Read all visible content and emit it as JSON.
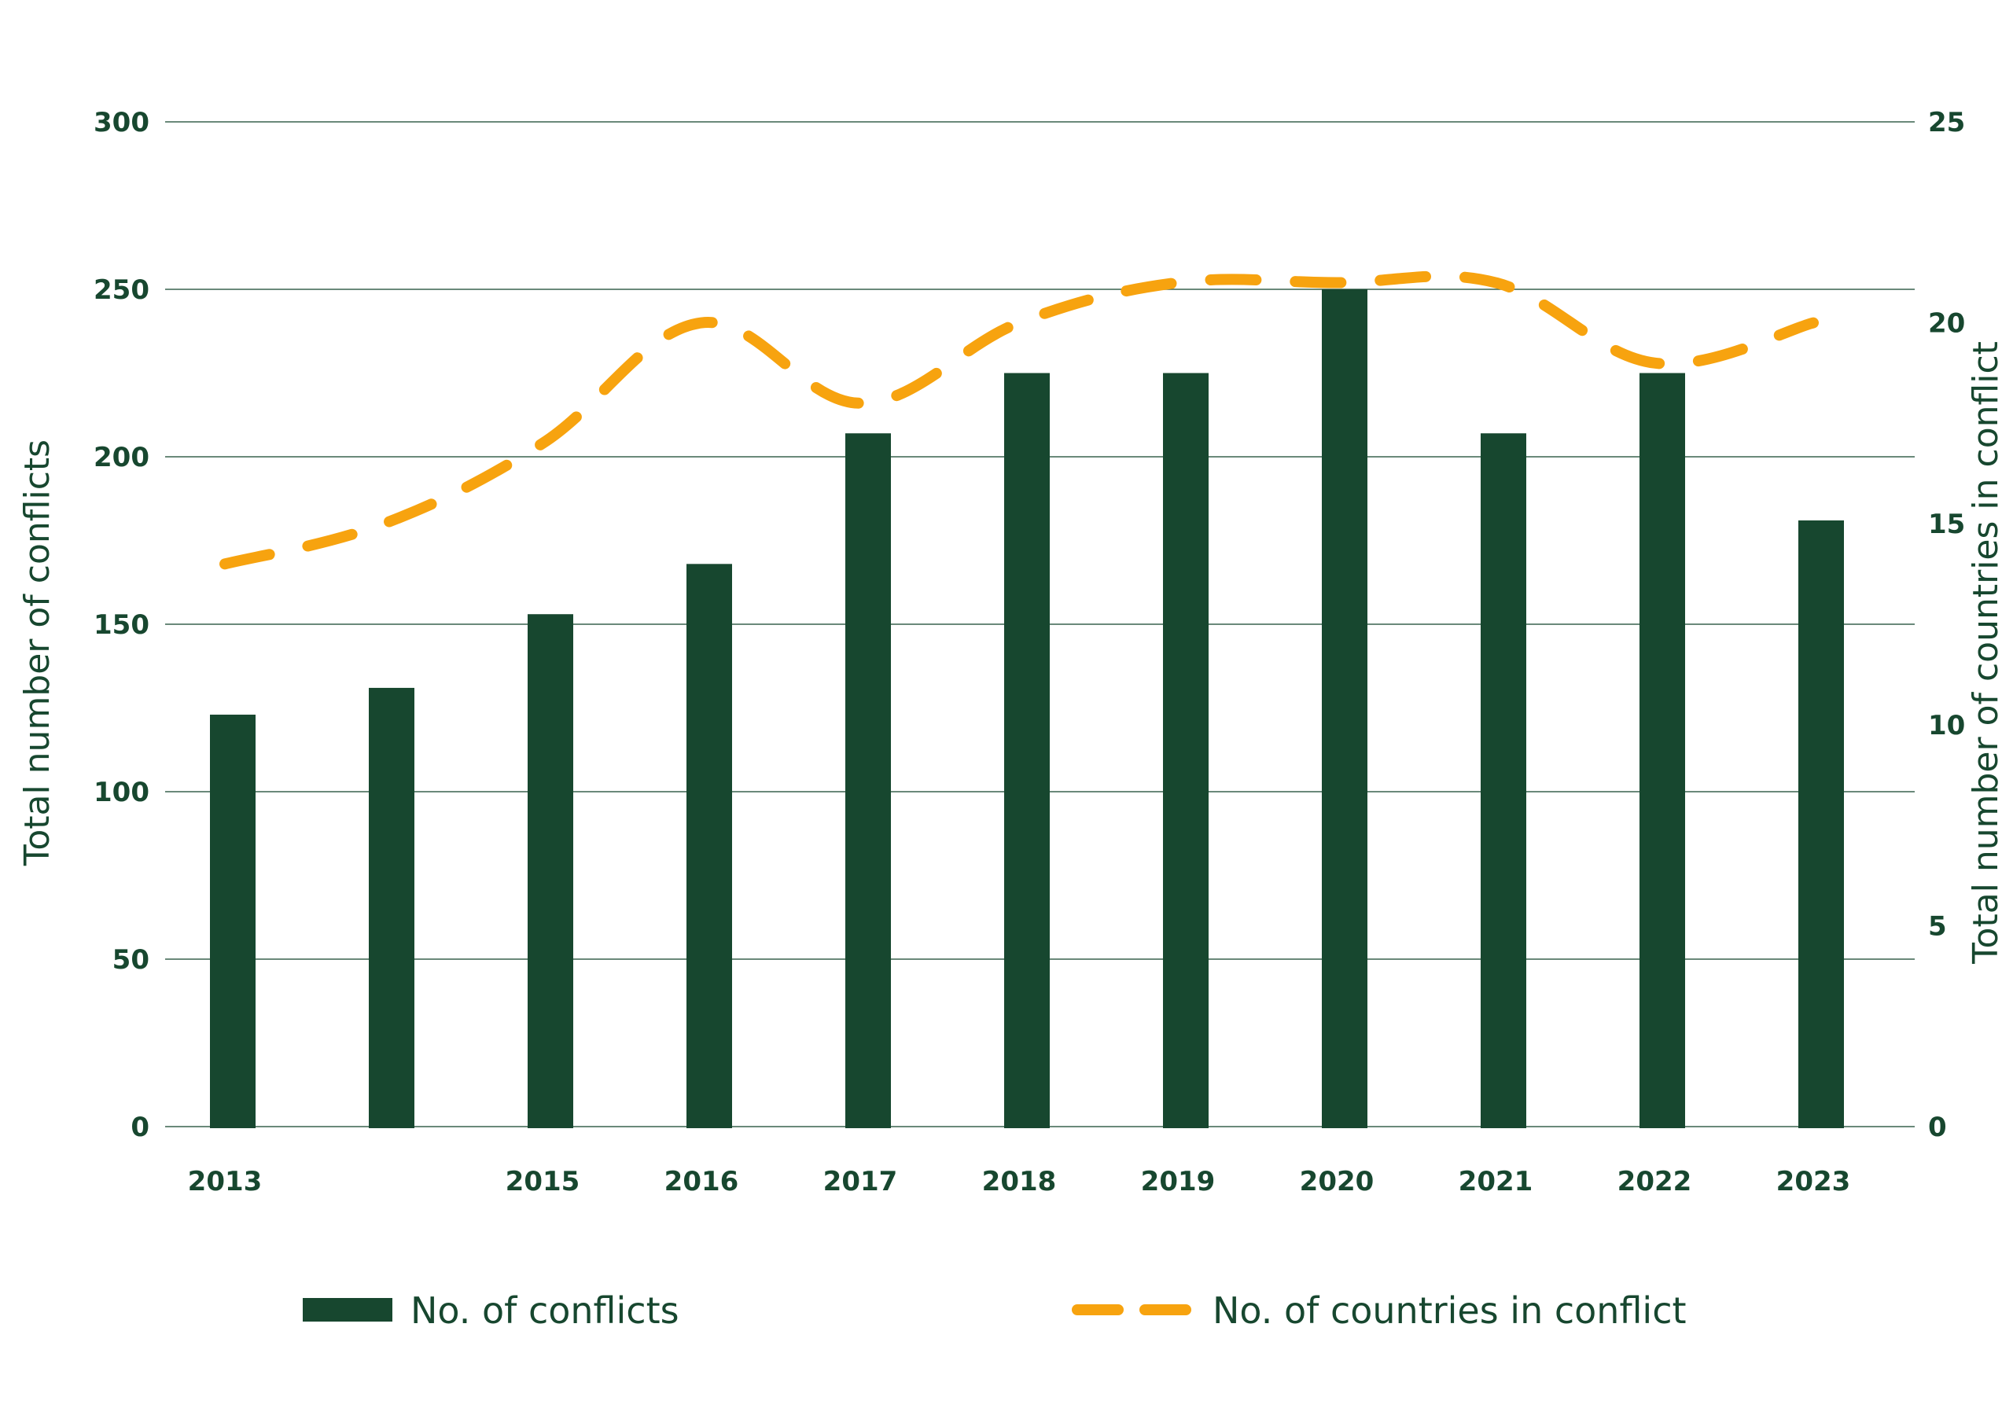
{
  "chart_data": {
    "type": "bar+line",
    "categories": [
      "2013",
      "",
      "2015",
      "2016",
      "2017",
      "2018",
      "2019",
      "2020",
      "2021",
      "2022",
      "2023"
    ],
    "series": [
      {
        "name": "No. of conflicts",
        "type": "bar",
        "axis": "left",
        "values": [
          123,
          131,
          153,
          168,
          207,
          225,
          225,
          250,
          207,
          225,
          181
        ]
      },
      {
        "name": "No. of countries in conflict",
        "type": "line",
        "style": "dashed",
        "axis": "right",
        "values": [
          14,
          15,
          17,
          20,
          18,
          20,
          21,
          21,
          21,
          19,
          20
        ]
      }
    ],
    "y_left": {
      "label": "Total number of conflicts",
      "lim": [
        0,
        300
      ],
      "ticks": [
        "0",
        "50",
        "100",
        "150",
        "200",
        "250",
        "300"
      ]
    },
    "y_right": {
      "label": "Total number of countries in conflict",
      "lim": [
        0,
        25
      ],
      "ticks": [
        "0",
        "5",
        "10",
        "15",
        "20",
        "25"
      ]
    },
    "grid": true,
    "legend": {
      "position": "bottom",
      "items": [
        {
          "label": "No. of conflicts"
        },
        {
          "label": "No. of countries in conflict"
        }
      ]
    },
    "colors": {
      "bar": "#17472f",
      "line": "#f7a30f",
      "grid": "#17472f",
      "text": "#17472f"
    }
  }
}
